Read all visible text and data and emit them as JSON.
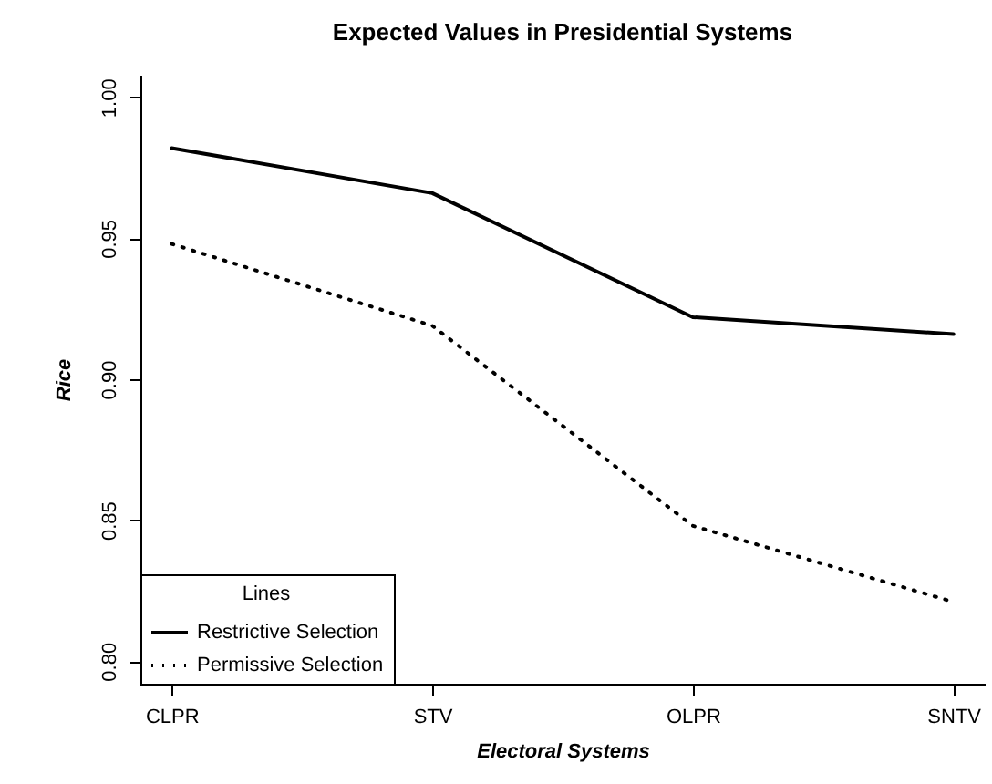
{
  "chart_data": {
    "type": "line",
    "title": "Expected Values in Presidential Systems",
    "xlabel": "Electoral Systems",
    "ylabel": "Rice",
    "categories": [
      "CLPR",
      "STV",
      "OLPR",
      "SNTV"
    ],
    "series": [
      {
        "name": "Restrictive Selection",
        "color": "#000000",
        "line_style": "solid",
        "values": [
          0.982,
          0.966,
          0.922,
          0.916
        ]
      },
      {
        "name": "Permissive Selection",
        "color": "#000000",
        "line_style": "dotted",
        "values": [
          0.948,
          0.919,
          0.848,
          0.821
        ]
      }
    ],
    "ylim": [
      0.792,
      1.008
    ],
    "yticks": [
      {
        "value": 0.8,
        "label": "0.80"
      },
      0.85,
      {
        "value": 0.9,
        "label": "0.90"
      },
      0.95,
      {
        "value": 1,
        "label": "1.00"
      }
    ],
    "legend": "bottom left",
    "legend_title": "Lines"
  }
}
